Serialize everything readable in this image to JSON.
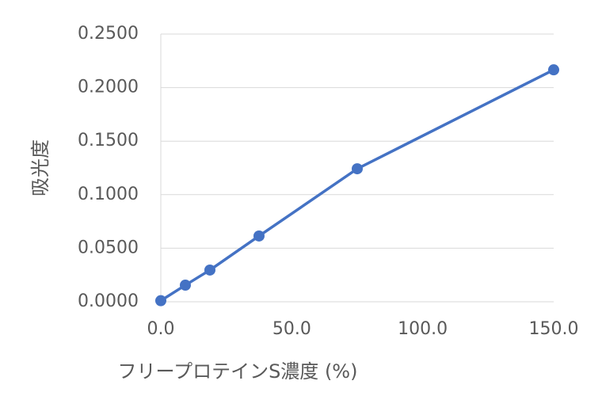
{
  "chart_data": {
    "type": "line",
    "x_label": "フリープロテインS濃度 (%)",
    "y_label": "吸光度",
    "x": [
      0,
      9.375,
      18.75,
      37.5,
      75,
      150
    ],
    "series": [
      {
        "color": "#4472c4",
        "values": [
          0.001,
          0.0155,
          0.0296,
          0.0614,
          0.1242,
          0.2166
        ]
      }
    ],
    "xlim": [
      0,
      150
    ],
    "xticks": [
      {
        "value": 0,
        "label": "0.0"
      },
      {
        "value": 50,
        "label": "50.0"
      },
      {
        "value": 100,
        "label": "100.0"
      },
      {
        "value": 150,
        "label": "150.0"
      }
    ],
    "ylim": [
      0,
      0.25
    ],
    "yticks": [
      {
        "value": 0,
        "label": "0.0000"
      },
      {
        "value": 0.05,
        "label": "0.0500"
      },
      {
        "value": 0.1,
        "label": "0.1000"
      },
      {
        "value": 0.15,
        "label": "0.1500"
      },
      {
        "value": 0.2,
        "label": "0.2000"
      },
      {
        "value": 0.25,
        "label": "0.2500"
      }
    ],
    "grid": true
  }
}
